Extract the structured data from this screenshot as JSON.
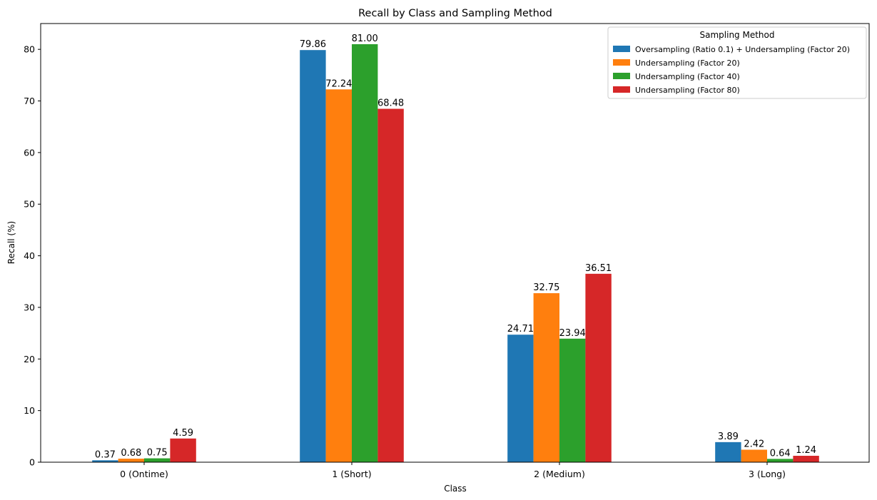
{
  "chart_data": {
    "type": "bar",
    "title": "Recall by Class and Sampling Method",
    "xlabel": "Class",
    "ylabel": "Recall (%)",
    "categories": [
      "0 (Ontime)",
      "1 (Short)",
      "2 (Medium)",
      "3 (Long)"
    ],
    "ylim": [
      0,
      85
    ],
    "yticks": [
      "0",
      "10",
      "20",
      "30",
      "40",
      "50",
      "60",
      "70",
      "80"
    ],
    "grid": false,
    "legend": {
      "title": "Sampling Method",
      "position": "top-right"
    },
    "series": [
      {
        "name": "Oversampling (Ratio 0.1) + Undersampling (Factor 20)",
        "color": "#1f77b4",
        "values": [
          0.37,
          79.86,
          24.71,
          3.89
        ],
        "labels": [
          "0.37",
          "79.86",
          "24.71",
          "3.89"
        ]
      },
      {
        "name": "Undersampling (Factor 20)",
        "color": "#ff7f0e",
        "values": [
          0.68,
          72.24,
          32.75,
          2.42
        ],
        "labels": [
          "0.68",
          "72.24",
          "32.75",
          "2.42"
        ]
      },
      {
        "name": "Undersampling (Factor 40)",
        "color": "#2ca02c",
        "values": [
          0.75,
          81.0,
          23.94,
          0.64
        ],
        "labels": [
          "0.75",
          "81.00",
          "23.94",
          "0.64"
        ]
      },
      {
        "name": "Undersampling (Factor 80)",
        "color": "#d62728",
        "values": [
          4.59,
          68.48,
          36.51,
          1.24
        ],
        "labels": [
          "4.59",
          "68.48",
          "36.51",
          "1.24"
        ]
      }
    ]
  }
}
